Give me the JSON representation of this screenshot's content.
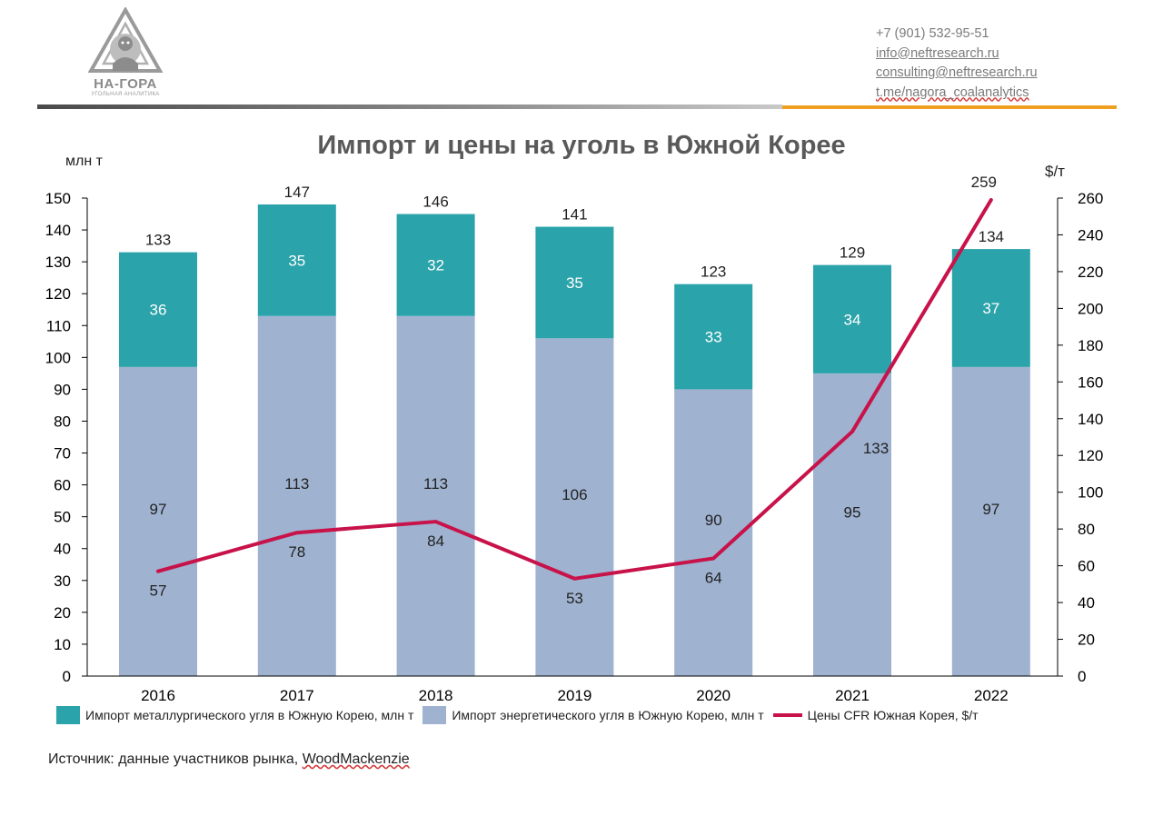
{
  "header": {
    "logo_name": "НА-ГОРА",
    "logo_subtitle": "УГОЛЬНАЯ АНАЛИТИКА",
    "phone": "+7 (901) 532-95-51",
    "email_info": "info@neftresearch.ru",
    "email_consulting": "consulting@neftresearch.ru",
    "telegram": "t.me/nagora_coalanalytics"
  },
  "colors": {
    "metallurgical": "#2aa3aa",
    "energy": "#9fb2d0",
    "price_line": "#c8124a",
    "divider_orange": "#f0a020"
  },
  "chart_data": {
    "type": "bar",
    "stacked": true,
    "title": "Импорт и цены на уголь в Южной Корее",
    "ylabel_left": "млн т",
    "ylabel_right": "$/т",
    "categories": [
      "2016",
      "2017",
      "2018",
      "2019",
      "2020",
      "2021",
      "2022"
    ],
    "ylim_left": [
      0,
      150
    ],
    "yticks_left": [
      "0",
      "10",
      "20",
      "30",
      "40",
      "50",
      "60",
      "70",
      "80",
      "90",
      "100",
      "110",
      "120",
      "130",
      "140",
      "150"
    ],
    "ylim_right": [
      0,
      260
    ],
    "yticks_right": [
      "0",
      "20",
      "40",
      "60",
      "80",
      "100",
      "120",
      "140",
      "160",
      "180",
      "200",
      "220",
      "240",
      "260"
    ],
    "series": [
      {
        "name": "Импорт энергетического угля в Южную Корею, млн т",
        "type": "bar",
        "axis": "left",
        "color": "#9fb2d0",
        "values": [
          97,
          113,
          113,
          106,
          90,
          95,
          97
        ]
      },
      {
        "name": "Импорт металлургического угля в Южную Корею, млн т",
        "type": "bar",
        "axis": "left",
        "color": "#2aa3aa",
        "values": [
          36,
          35,
          32,
          35,
          33,
          34,
          37
        ]
      },
      {
        "name": "Цены CFR Южная Корея, $/т",
        "type": "line",
        "axis": "right",
        "color": "#c8124a",
        "values": [
          57,
          78,
          84,
          53,
          64,
          133,
          259
        ]
      }
    ],
    "totals": [
      133,
      147,
      146,
      141,
      123,
      129,
      134
    ],
    "legend_order": [
      "Импорт металлургического угля в Южную Корею, млн т",
      "Импорт энергетического угля в Южную Корею, млн т",
      "Цены CFR Южная Корея, $/т"
    ],
    "grid": false,
    "legend_position": "bottom"
  },
  "source": {
    "prefix": "Источник: данные участников рынка, ",
    "name": "WoodMackenzie"
  }
}
